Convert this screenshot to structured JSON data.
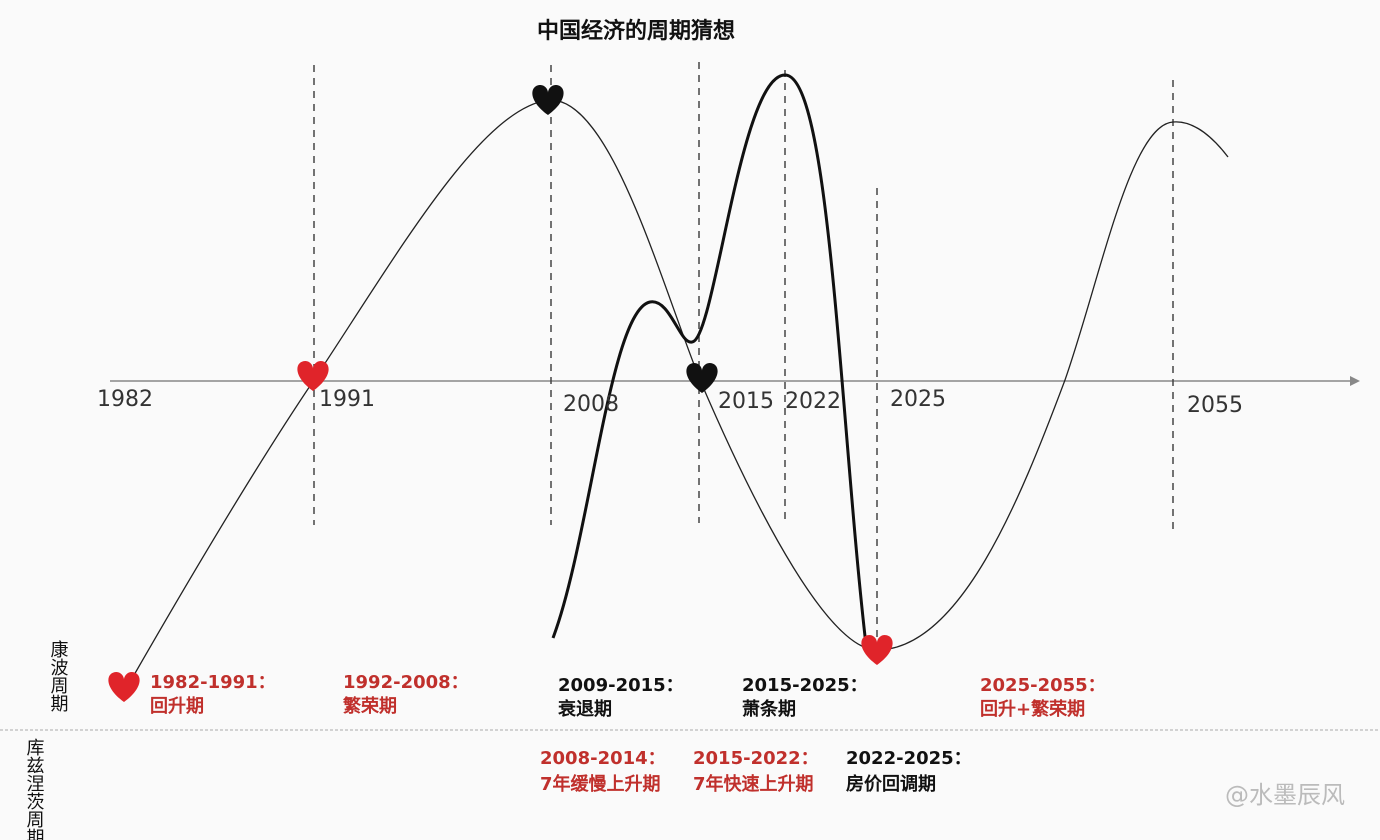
{
  "title": "中国经济的周期猜想",
  "years": [
    "1982",
    "1991",
    "2008",
    "2015",
    "2022",
    "2025",
    "2055"
  ],
  "side_labels": {
    "kondratiev": "康波周期",
    "kuznets": "库兹涅茨周期"
  },
  "kondratiev_phases": [
    {
      "period": "1982-1991：",
      "phase": "回升期"
    },
    {
      "period": "1992-2008：",
      "phase": "繁荣期"
    },
    {
      "period": "2009-2015：",
      "phase": "衰退期"
    },
    {
      "period": "2015-2025：",
      "phase": "萧条期"
    },
    {
      "period": "2025-2055：",
      "phase": "回升+繁荣期"
    }
  ],
  "kuznets_phases": [
    {
      "period": "2008-2014：",
      "phase": "7年缓慢上升期"
    },
    {
      "period": "2015-2022：",
      "phase": "7年快速上升期"
    },
    {
      "period": "2022-2025：",
      "phase": "房价回调期"
    }
  ],
  "watermark": "@水墨辰风"
}
